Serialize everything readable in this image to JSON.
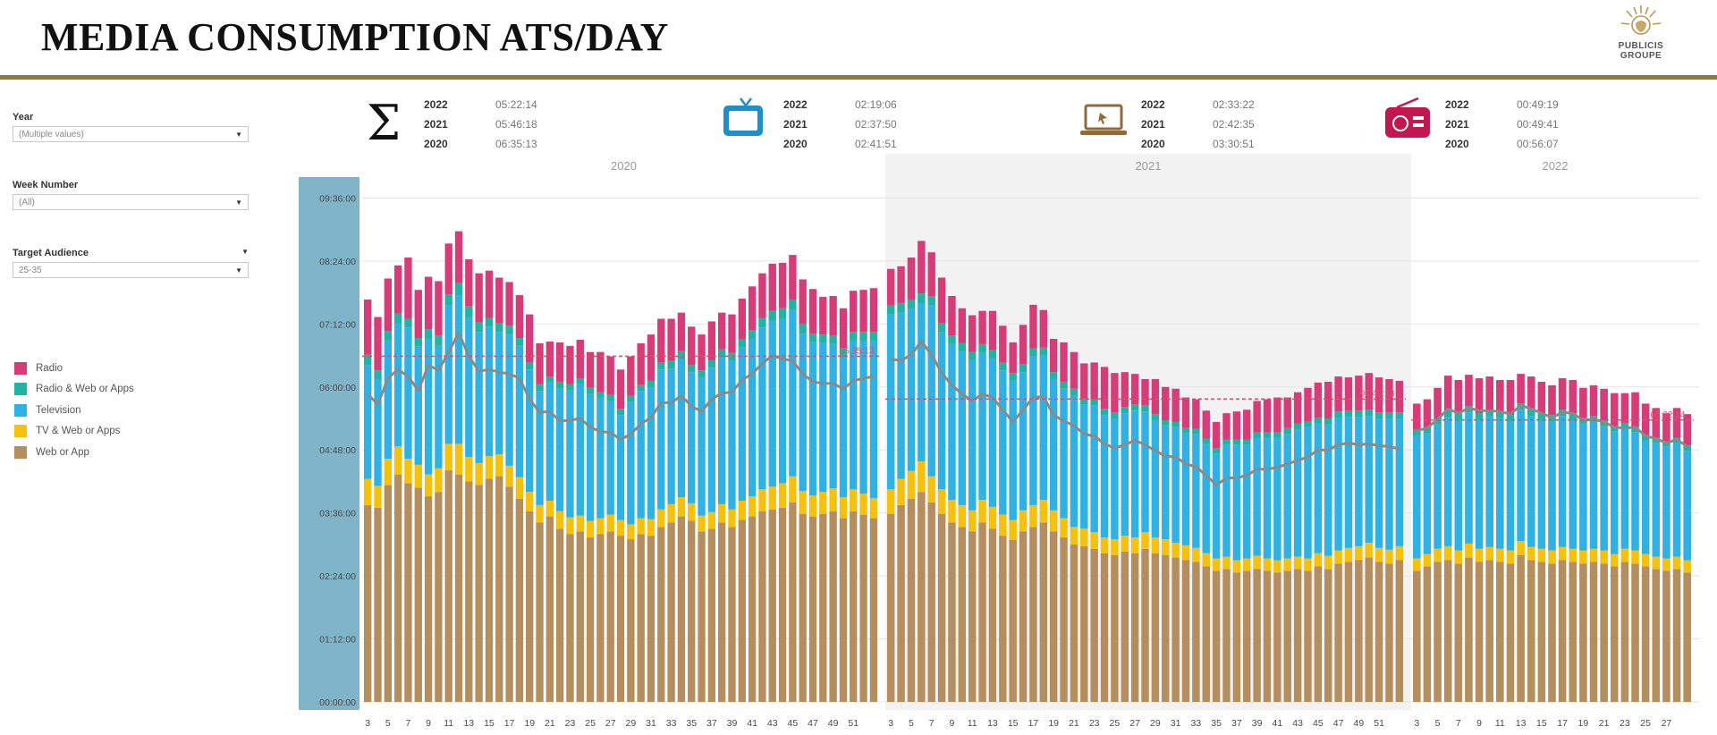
{
  "header": {
    "title": "MEDIA CONSUMPTION ATS/DAY",
    "logo_text_line1": "PUBLICIS",
    "logo_text_line2": "GROUPE"
  },
  "filters": {
    "year_label": "Year",
    "year_value": "(Multiple values)",
    "week_label": "Week Number",
    "week_value": "(All)",
    "audience_label": "Target Audience",
    "audience_value": "25-35"
  },
  "legend": [
    {
      "label": "Radio",
      "color": "#d63c78"
    },
    {
      "label": "Radio & Web or Apps",
      "color": "#22b3a5"
    },
    {
      "label": "Television",
      "color": "#2fb2e3"
    },
    {
      "label": "TV & Web or Apps",
      "color": "#f5c10f"
    },
    {
      "label": "Web or App",
      "color": "#b58e5f"
    }
  ],
  "kpis": [
    {
      "icon": "sigma-icon",
      "years": [
        "2022",
        "2021",
        "2020"
      ],
      "values": [
        "05:22:14",
        "05:46:18",
        "06:35:13"
      ]
    },
    {
      "icon": "television-icon",
      "years": [
        "2022",
        "2021",
        "2020"
      ],
      "values": [
        "02:19:06",
        "02:37:50",
        "02:41:51"
      ]
    },
    {
      "icon": "laptop-icon",
      "years": [
        "2022",
        "2021",
        "2020"
      ],
      "values": [
        "02:33:22",
        "02:42:35",
        "03:30:51"
      ]
    },
    {
      "icon": "radio-icon",
      "years": [
        "2022",
        "2021",
        "2020"
      ],
      "values": [
        "00:49:19",
        "00:49:41",
        "00:56:07"
      ]
    }
  ],
  "chart_data": {
    "type": "bar",
    "stacked": true,
    "title": "",
    "xlabel": "",
    "ylabel": "",
    "y_ticks": [
      "00:00:00",
      "01:12:00",
      "02:24:00",
      "03:36:00",
      "04:48:00",
      "06:00:00",
      "07:12:00",
      "08:24:00",
      "09:36:00"
    ],
    "ylim_minutes": [
      0,
      600
    ],
    "year_panels": [
      "2020",
      "2021",
      "2022"
    ],
    "x_tick_labels": [
      [
        "3",
        "5",
        "7",
        "9",
        "11",
        "13",
        "15",
        "17",
        "19",
        "21",
        "23",
        "25",
        "27",
        "29",
        "31",
        "33",
        "35",
        "37",
        "39",
        "41",
        "43",
        "45",
        "47",
        "49",
        "51"
      ],
      [
        "3",
        "5",
        "7",
        "9",
        "11",
        "13",
        "15",
        "17",
        "19",
        "21",
        "23",
        "25",
        "27",
        "29",
        "31",
        "33",
        "35",
        "37",
        "39",
        "41",
        "43",
        "45",
        "47",
        "49",
        "51"
      ],
      [
        "3",
        "5",
        "7",
        "9",
        "11",
        "13",
        "15",
        "17",
        "19",
        "21",
        "23",
        "25",
        "27"
      ]
    ],
    "reference_labels": [
      "06:35:13",
      "05:46:18",
      "05:22:14"
    ],
    "reference_minutes": [
      395.2,
      346.3,
      322.2
    ],
    "series_names": [
      "Web or App",
      "TV & Web or Apps",
      "Television",
      "Radio & Web or Apps",
      "Radio"
    ],
    "web_2020": [
      225,
      222,
      248,
      260,
      250,
      245,
      235,
      240,
      265,
      260,
      252,
      248,
      255,
      258,
      246,
      232,
      218,
      205,
      212,
      198,
      192,
      195,
      188,
      192,
      195,
      190,
      186,
      192,
      190,
      200,
      205,
      212,
      207,
      195,
      198,
      205,
      200,
      208,
      212,
      218,
      220,
      222,
      228,
      215,
      212,
      215,
      218,
      210,
      218,
      214,
      210
    ],
    "tvw_2020": [
      30,
      25,
      30,
      32,
      28,
      26,
      25,
      27,
      30,
      35,
      28,
      25,
      26,
      25,
      24,
      25,
      22,
      20,
      18,
      20,
      19,
      18,
      19,
      18,
      19,
      18,
      17,
      18,
      19,
      20,
      21,
      22,
      20,
      18,
      19,
      21,
      20,
      22,
      23,
      25,
      26,
      28,
      30,
      26,
      24,
      25,
      26,
      24,
      25,
      24,
      23
    ],
    "tv_2020": [
      130,
      122,
      135,
      140,
      150,
      135,
      155,
      140,
      158,
      170,
      160,
      150,
      148,
      140,
      150,
      150,
      140,
      130,
      135,
      140,
      145,
      150,
      145,
      138,
      130,
      120,
      140,
      145,
      150,
      160,
      155,
      158,
      150,
      158,
      165,
      168,
      170,
      175,
      180,
      185,
      190,
      188,
      190,
      180,
      175,
      170,
      165,
      160,
      170,
      175,
      180
    ],
    "rwa_2020": [
      12,
      10,
      11,
      12,
      10,
      10,
      11,
      12,
      13,
      14,
      12,
      11,
      10,
      10,
      10,
      9,
      8,
      8,
      7,
      8,
      7,
      7,
      7,
      6,
      7,
      7,
      7,
      7,
      8,
      8,
      9,
      9,
      8,
      8,
      9,
      9,
      9,
      10,
      10,
      11,
      11,
      12,
      12,
      11,
      10,
      10,
      10,
      10,
      10,
      10,
      10
    ],
    "radio_2020": [
      63,
      61,
      60,
      55,
      70,
      55,
      60,
      62,
      58,
      59,
      54,
      56,
      54,
      52,
      50,
      49,
      55,
      47,
      40,
      45,
      44,
      44,
      41,
      46,
      44,
      45,
      45,
      48,
      53,
      50,
      48,
      44,
      44,
      41,
      44,
      42,
      44,
      46,
      50,
      51,
      54,
      52,
      51,
      51,
      51,
      43,
      45,
      46,
      47,
      48,
      50
    ],
    "web_2021": [
      215,
      225,
      232,
      240,
      228,
      215,
      205,
      200,
      195,
      205,
      198,
      190,
      185,
      195,
      200,
      205,
      195,
      188,
      180,
      178,
      175,
      170,
      168,
      172,
      170,
      175,
      170,
      168,
      165,
      162,
      160,
      155,
      150,
      152,
      148,
      150,
      152,
      150,
      148,
      150,
      152,
      150,
      155,
      152,
      158,
      160,
      162,
      165,
      160,
      158,
      162
    ],
    "tvw_2021": [
      28,
      30,
      32,
      35,
      30,
      28,
      26,
      25,
      24,
      26,
      25,
      24,
      23,
      24,
      25,
      26,
      24,
      22,
      20,
      20,
      19,
      18,
      18,
      18,
      18,
      19,
      18,
      18,
      17,
      17,
      16,
      15,
      14,
      14,
      14,
      14,
      15,
      14,
      14,
      14,
      14,
      14,
      15,
      15,
      15,
      16,
      16,
      17,
      16,
      16,
      16
    ],
    "tv_2021": [
      200,
      190,
      185,
      180,
      195,
      180,
      178,
      175,
      172,
      168,
      170,
      165,
      160,
      158,
      170,
      165,
      150,
      148,
      150,
      142,
      145,
      140,
      138,
      140,
      145,
      138,
      135,
      130,
      132,
      128,
      130,
      125,
      120,
      128,
      132,
      130,
      135,
      138,
      140,
      142,
      145,
      150,
      148,
      150,
      152,
      150,
      148,
      145,
      148,
      150,
      146
    ],
    "rwa_2021": [
      10,
      11,
      11,
      12,
      11,
      10,
      10,
      10,
      9,
      10,
      9,
      9,
      8,
      9,
      9,
      9,
      8,
      8,
      8,
      7,
      7,
      7,
      7,
      7,
      7,
      7,
      6,
      6,
      6,
      6,
      6,
      6,
      6,
      6,
      6,
      6,
      6,
      6,
      6,
      7,
      7,
      7,
      7,
      7,
      7,
      7,
      7,
      7,
      7,
      7,
      7
    ],
    "radio_2021": [
      42,
      42,
      48,
      60,
      50,
      52,
      45,
      40,
      42,
      38,
      45,
      42,
      35,
      45,
      50,
      43,
      38,
      45,
      42,
      40,
      42,
      48,
      45,
      40,
      35,
      30,
      40,
      38,
      38,
      35,
      34,
      32,
      30,
      30,
      32,
      34,
      36,
      38,
      40,
      35,
      36,
      38,
      40,
      42,
      40,
      38,
      40,
      42,
      40,
      38,
      36
    ],
    "web_2022": [
      150,
      155,
      160,
      162,
      158,
      165,
      160,
      162,
      160,
      158,
      168,
      162,
      160,
      158,
      162,
      160,
      158,
      160,
      158,
      155,
      160,
      158,
      155,
      152,
      150,
      152,
      148
    ],
    "tvw_2022": [
      14,
      14,
      15,
      16,
      15,
      16,
      15,
      15,
      15,
      15,
      16,
      15,
      15,
      15,
      15,
      15,
      15,
      15,
      15,
      14,
      15,
      15,
      14,
      14,
      14,
      14,
      14
    ],
    "tv_2022": [
      140,
      138,
      142,
      148,
      150,
      150,
      148,
      150,
      150,
      148,
      150,
      150,
      148,
      148,
      150,
      148,
      145,
      145,
      142,
      140,
      138,
      135,
      130,
      130,
      128,
      130,
      125
    ],
    "rwa_2022": [
      7,
      7,
      7,
      7,
      7,
      7,
      7,
      7,
      7,
      7,
      7,
      7,
      7,
      7,
      7,
      7,
      7,
      7,
      7,
      6,
      6,
      6,
      6,
      6,
      6,
      6,
      6
    ],
    "radio_2022": [
      30,
      32,
      35,
      40,
      38,
      36,
      40,
      38,
      36,
      40,
      34,
      38,
      36,
      34,
      36,
      38,
      34,
      35,
      36,
      38,
      34,
      40,
      36,
      34,
      32,
      34,
      36
    ],
    "avg_line_2020": [
      352,
      340,
      370,
      380,
      372,
      356,
      385,
      379,
      400,
      422,
      395,
      378,
      380,
      377,
      375,
      370,
      346,
      331,
      332,
      321,
      322,
      324,
      314,
      309,
      308,
      300,
      306,
      318,
      325,
      342,
      342,
      350,
      338,
      332,
      346,
      353,
      354,
      368,
      375,
      387,
      396,
      392,
      390,
      375,
      366,
      364,
      364,
      358,
      367,
      370,
      372
    ],
    "avg_line_2021": [
      392,
      390,
      397,
      412,
      397,
      376,
      362,
      352,
      344,
      352,
      348,
      334,
      320,
      334,
      348,
      349,
      328,
      321,
      316,
      306,
      304,
      295,
      290,
      294,
      299,
      294,
      287,
      281,
      280,
      272,
      269,
      259,
      248,
      256,
      256,
      259,
      266,
      266,
      268,
      272,
      276,
      280,
      288,
      288,
      294,
      296,
      294,
      295,
      293,
      292,
      289
    ],
    "avg_line_2022": [
      310,
      313,
      323,
      335,
      330,
      336,
      333,
      333,
      332,
      329,
      339,
      335,
      330,
      325,
      331,
      330,
      322,
      323,
      320,
      314,
      313,
      314,
      304,
      301,
      296,
      300,
      292
    ]
  }
}
